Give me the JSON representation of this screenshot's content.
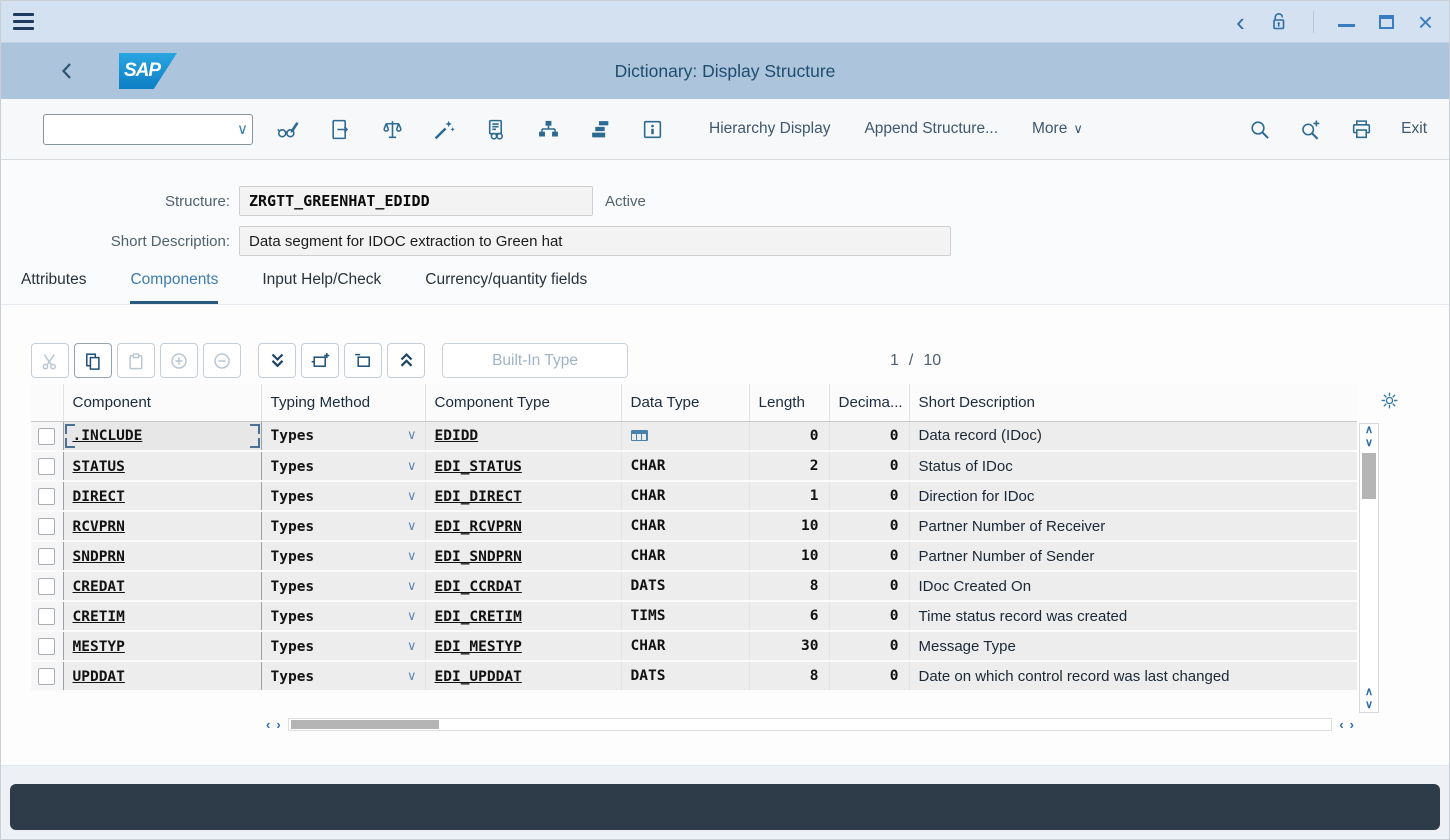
{
  "glyphs": {
    "chevron_left": "‹",
    "chevron_right": "›",
    "chevron_up": "∧",
    "chevron_down": "∨",
    "dropdown": "∨",
    "close": "×"
  },
  "header": {
    "logo_text": "SAP",
    "title": "Dictionary: Display Structure"
  },
  "toolbar": {
    "command_value": "",
    "items": [
      {
        "label": "Hierarchy Display"
      },
      {
        "label": "Append Structure..."
      },
      {
        "label": "More"
      }
    ],
    "exit_label": "Exit"
  },
  "form": {
    "structure_label": "Structure:",
    "structure_value": "ZRGTT_GREENHAT_EDIDD",
    "status_text": "Active",
    "description_label": "Short Description:",
    "description_value": "Data segment for IDOC extraction to Green hat"
  },
  "tabs": [
    {
      "label": "Attributes",
      "selected": false
    },
    {
      "label": "Components",
      "selected": true
    },
    {
      "label": "Input Help/Check",
      "selected": false
    },
    {
      "label": "Currency/quantity fields",
      "selected": false
    }
  ],
  "grid": {
    "builtin_type_label": "Built-In Type",
    "position_current": "1",
    "position_separator": "/",
    "position_total": "10",
    "columns": [
      "Component",
      "Typing Method",
      "Component Type",
      "Data Type",
      "Length",
      "Decima...",
      "Short Description"
    ],
    "rows": [
      {
        "component": ".INCLUDE",
        "typing_method": "Types",
        "component_type": "EDIDD",
        "data_type": "",
        "data_type_icon": true,
        "length": "0",
        "decimals": "0",
        "description": "Data record (IDoc)",
        "focused": true
      },
      {
        "component": "STATUS",
        "typing_method": "Types",
        "component_type": "EDI_STATUS",
        "data_type": "CHAR",
        "data_type_icon": false,
        "length": "2",
        "decimals": "0",
        "description": "Status of IDoc",
        "focused": false
      },
      {
        "component": "DIRECT",
        "typing_method": "Types",
        "component_type": "EDI_DIRECT",
        "data_type": "CHAR",
        "data_type_icon": false,
        "length": "1",
        "decimals": "0",
        "description": "Direction for IDoc",
        "focused": false
      },
      {
        "component": "RCVPRN",
        "typing_method": "Types",
        "component_type": "EDI_RCVPRN",
        "data_type": "CHAR",
        "data_type_icon": false,
        "length": "10",
        "decimals": "0",
        "description": "Partner Number of Receiver",
        "focused": false
      },
      {
        "component": "SNDPRN",
        "typing_method": "Types",
        "component_type": "EDI_SNDPRN",
        "data_type": "CHAR",
        "data_type_icon": false,
        "length": "10",
        "decimals": "0",
        "description": "Partner Number of Sender",
        "focused": false
      },
      {
        "component": "CREDAT",
        "typing_method": "Types",
        "component_type": "EDI_CCRDAT",
        "data_type": "DATS",
        "data_type_icon": false,
        "length": "8",
        "decimals": "0",
        "description": "IDoc Created On",
        "focused": false
      },
      {
        "component": "CRETIM",
        "typing_method": "Types",
        "component_type": "EDI_CRETIM",
        "data_type": "TIMS",
        "data_type_icon": false,
        "length": "6",
        "decimals": "0",
        "description": "Time status record was created",
        "focused": false
      },
      {
        "component": "MESTYP",
        "typing_method": "Types",
        "component_type": "EDI_MESTYP",
        "data_type": "CHAR",
        "data_type_icon": false,
        "length": "30",
        "decimals": "0",
        "description": "Message Type",
        "focused": false
      },
      {
        "component": "UPDDAT",
        "typing_method": "Types",
        "component_type": "EDI_UPDDAT",
        "data_type": "DATS",
        "data_type_icon": false,
        "length": "8",
        "decimals": "0",
        "description": "Date on which control record was last changed",
        "focused": false
      }
    ]
  }
}
